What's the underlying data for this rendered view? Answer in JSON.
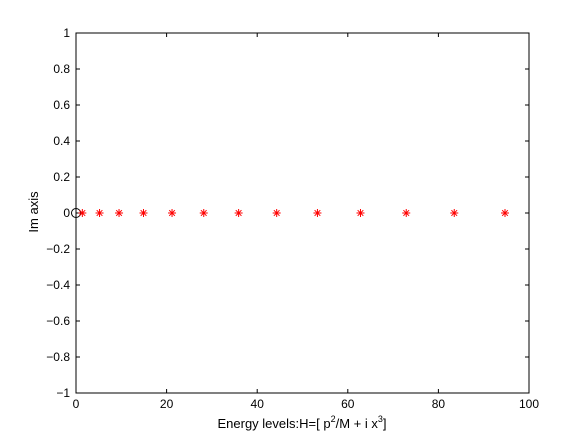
{
  "chart_data": {
    "type": "scatter",
    "title": "",
    "xlabel": {
      "prefix": "Energy levels:H=[ p",
      "sup1": "2",
      "middle": "/M + i x",
      "sup2": "3",
      "suffix": "]"
    },
    "ylabel": "Im axis",
    "xlim": [
      0,
      100
    ],
    "ylim": [
      -1,
      1
    ],
    "x_ticks": [
      "0",
      "20",
      "40",
      "60",
      "80",
      "100"
    ],
    "y_ticks": [
      "−1",
      "−0.8",
      "−0.6",
      "−0.4",
      "−0.2",
      "0",
      "0.2",
      "0.4",
      "0.6",
      "0.8",
      "1"
    ],
    "grid": false,
    "series": [
      {
        "marker": "circle",
        "color": "#000000",
        "points": [
          [
            0,
            0
          ]
        ]
      },
      {
        "marker": "asterisk",
        "color": "#ff0000",
        "points": [
          [
            1.4,
            0
          ],
          [
            5.2,
            0
          ],
          [
            9.5,
            0
          ],
          [
            14.9,
            0
          ],
          [
            21.2,
            0
          ],
          [
            28.2,
            0
          ],
          [
            35.9,
            0
          ],
          [
            44.3,
            0
          ],
          [
            53.3,
            0
          ],
          [
            62.8,
            0
          ],
          [
            72.9,
            0
          ],
          [
            83.5,
            0
          ],
          [
            94.7,
            0
          ]
        ]
      }
    ]
  }
}
